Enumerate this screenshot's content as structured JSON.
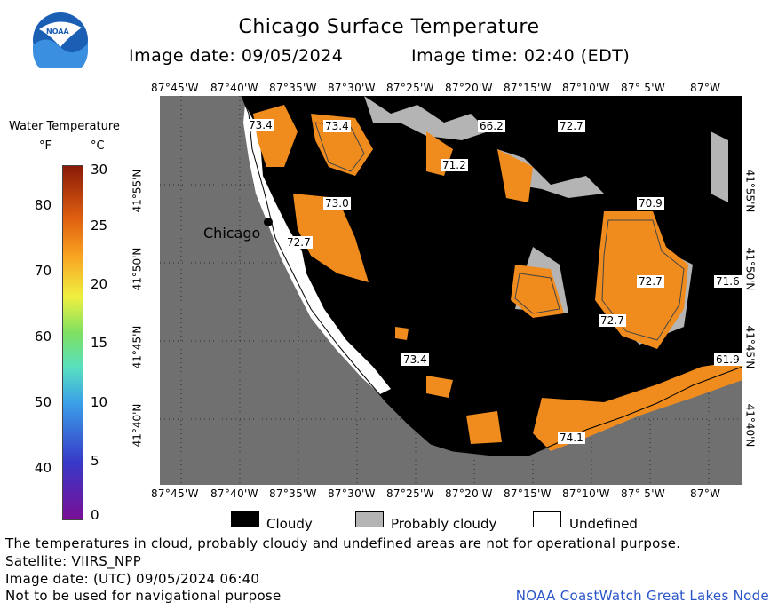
{
  "header": {
    "title": "Chicago Surface Temperature",
    "image_date": "Image date: 09/05/2024",
    "image_time": "Image time: 02:40 (EDT)"
  },
  "logo": {
    "text": "NOAA"
  },
  "legend": {
    "title": "Water Temperature",
    "unit_f": "°F",
    "unit_c": "°C",
    "ticks_f": [
      "80",
      "70",
      "60",
      "50",
      "40"
    ],
    "ticks_c": [
      "30",
      "25",
      "20",
      "15",
      "10",
      "5",
      "0"
    ]
  },
  "map": {
    "lon_labels": [
      "87°45'W",
      "87°40'W",
      "87°35'W",
      "87°30'W",
      "87°25'W",
      "87°20'W",
      "87°15'W",
      "87°10'W",
      "87° 5'W",
      "87°W"
    ],
    "lat_labels": [
      "41°55'N",
      "41°50'N",
      "41°45'N",
      "41°40'N"
    ],
    "city": "Chicago",
    "temperature_labels": [
      "73.4",
      "73.4",
      "66.2",
      "72.7",
      "71.2",
      "73.0",
      "70.9",
      "72.7",
      "72.7",
      "71.6",
      "72.7",
      "73.4",
      "61.9",
      "74.1"
    ]
  },
  "key": {
    "cloudy": "Cloudy",
    "probably_cloudy": "Probably cloudy",
    "undefined": "Undefined"
  },
  "footer": {
    "note": "The temperatures in cloud, probably cloudy and undefined areas are not for operational purpose.",
    "satellite": "Satellite: VIIRS_NPP",
    "utc_date": "Image date: (UTC) 09/05/2024  06:40",
    "warning": "Not to be used for navigational purpose",
    "credit": "NOAA CoastWatch Great Lakes Node"
  },
  "colors": {
    "land": "#707070",
    "cloud": "#000000",
    "probably_cloudy": "#b4b4b4",
    "water_warm": "#f08c1e",
    "credit": "#2a55c8"
  }
}
